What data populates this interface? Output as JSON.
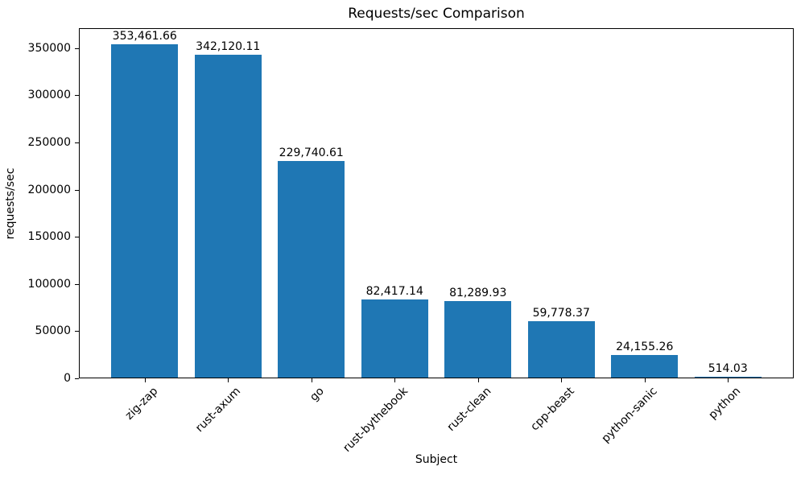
{
  "chart_data": {
    "type": "bar",
    "title": "Requests/sec Comparison",
    "xlabel": "Subject",
    "ylabel": "requests/sec",
    "categories": [
      "zig-zap",
      "rust-axum",
      "go",
      "rust-bythebook",
      "rust-clean",
      "cpp-beast",
      "python-sanic",
      "python"
    ],
    "values": [
      353461.66,
      342120.11,
      229740.61,
      82417.14,
      81289.93,
      59778.37,
      24155.26,
      514.03
    ],
    "value_labels": [
      "353,461.66",
      "342,120.11",
      "229,740.61",
      "82,417.14",
      "81,289.93",
      "59,778.37",
      "24,155.26",
      "514.03"
    ],
    "yticks": [
      0,
      50000,
      100000,
      150000,
      200000,
      250000,
      300000,
      350000
    ],
    "ylim": [
      0,
      371135
    ],
    "bar_color": "#1f77b4",
    "grid": false,
    "legend": null,
    "xtick_rotation_deg": 45
  }
}
